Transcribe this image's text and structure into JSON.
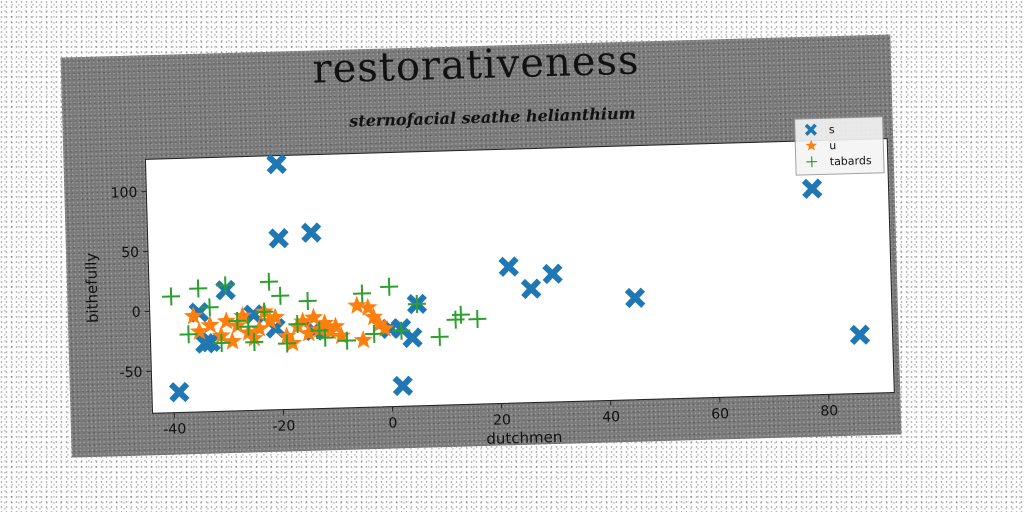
{
  "chart_data": {
    "type": "scatter",
    "title": "restorativeness",
    "subtitle": "sternofacial seathe helianthium",
    "xlabel": "dutchmen",
    "ylabel": "bithefully",
    "xlim": [
      -44,
      92
    ],
    "ylim": [
      -85,
      127
    ],
    "xticks": [
      -40,
      -20,
      0,
      20,
      40,
      60,
      80
    ],
    "yticks": [
      -50,
      0,
      50,
      100
    ],
    "grid": false,
    "legend_position": "top-right",
    "series": [
      {
        "name": "s",
        "marker": "x-filled",
        "color": "#1f77b4",
        "points": [
          [
            -20,
            120
          ],
          [
            -20,
            58
          ],
          [
            -14,
            62
          ],
          [
            -39,
            -68
          ],
          [
            -30,
            16
          ],
          [
            -35,
            -2
          ],
          [
            -34,
            -28
          ],
          [
            -33,
            -27
          ],
          [
            -21,
            -17
          ],
          [
            -25,
            -5
          ],
          [
            2,
            -68
          ],
          [
            4,
            -28
          ],
          [
            2,
            -20
          ],
          [
            5,
            0
          ],
          [
            22,
            29
          ],
          [
            26,
            10
          ],
          [
            30,
            22
          ],
          [
            45,
            0
          ],
          [
            78,
            87
          ],
          [
            86,
            -36
          ],
          [
            -14,
            -20
          ],
          [
            0,
            -20
          ]
        ]
      },
      {
        "name": "u",
        "marker": "star",
        "color": "#ff7f0e",
        "points": [
          [
            -36,
            -5
          ],
          [
            -35,
            -18
          ],
          [
            -33,
            -13
          ],
          [
            -31,
            -22
          ],
          [
            -30,
            -10
          ],
          [
            -29,
            -27
          ],
          [
            -28,
            -14
          ],
          [
            -27,
            -6
          ],
          [
            -26,
            -20
          ],
          [
            -25,
            -25
          ],
          [
            -24,
            -17
          ],
          [
            -23,
            -3
          ],
          [
            -22,
            -11
          ],
          [
            -21,
            -8
          ],
          [
            -19,
            -24
          ],
          [
            -18,
            -30
          ],
          [
            -17,
            -16
          ],
          [
            -16,
            -12
          ],
          [
            -15,
            -22
          ],
          [
            -14,
            -9
          ],
          [
            -13,
            -19
          ],
          [
            -12,
            -14
          ],
          [
            -11,
            -21
          ],
          [
            -10,
            -17
          ],
          [
            -9,
            -25
          ],
          [
            -5,
            -29
          ],
          [
            -4,
            -2
          ],
          [
            -3,
            -10
          ],
          [
            -2,
            -16
          ],
          [
            -1,
            -20
          ],
          [
            -6,
            0
          ]
        ]
      },
      {
        "name": "tabards",
        "marker": "plus",
        "color": "#2ca02c",
        "points": [
          [
            -40,
            12
          ],
          [
            -37,
            -20
          ],
          [
            -35,
            18
          ],
          [
            -33,
            2
          ],
          [
            -31,
            -28
          ],
          [
            -30,
            20
          ],
          [
            -28,
            -10
          ],
          [
            -25,
            -28
          ],
          [
            -23,
            -3
          ],
          [
            -22,
            22
          ],
          [
            -20,
            10
          ],
          [
            -19,
            -30
          ],
          [
            -17,
            -14
          ],
          [
            -15,
            5
          ],
          [
            -13,
            -20
          ],
          [
            -8,
            -29
          ],
          [
            -5,
            10
          ],
          [
            -3,
            -24
          ],
          [
            0,
            15
          ],
          [
            2,
            -22
          ],
          [
            5,
            0
          ],
          [
            9,
            -28
          ],
          [
            12,
            -14
          ],
          [
            13,
            -10
          ],
          [
            16,
            -14
          ],
          [
            -26,
            -15
          ],
          [
            -12,
            -26
          ]
        ]
      }
    ]
  }
}
